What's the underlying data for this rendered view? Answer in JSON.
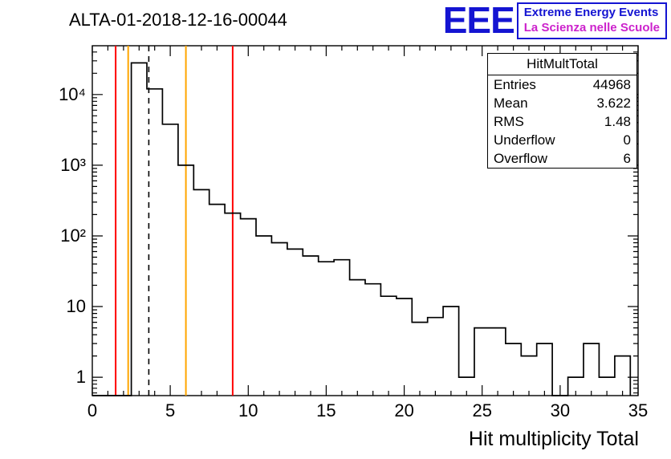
{
  "title": "ALTA-01-2018-12-16-00044",
  "logo": {
    "acronym": "EEE",
    "line1": "Extreme Energy Events",
    "line2": "La Scienza nelle Scuole",
    "color_primary": "#1414d2",
    "color_secondary": "#cc22cc"
  },
  "stats": {
    "title": "HitMultTotal",
    "rows": [
      {
        "label": "Entries",
        "value": "44968"
      },
      {
        "label": "Mean",
        "value": "3.622"
      },
      {
        "label": "RMS",
        "value": "1.48"
      },
      {
        "label": "Underflow",
        "value": "0"
      },
      {
        "label": "Overflow",
        "value": "6"
      }
    ]
  },
  "axis": {
    "x_title": "Hit multiplicity Total"
  },
  "chart_data": {
    "type": "bar",
    "subtype": "step-histogram",
    "title": "ALTA-01-2018-12-16-00044",
    "series_name": "HitMultTotal",
    "xlabel": "Hit multiplicity Total",
    "ylabel": "",
    "yscale": "log",
    "xlim": [
      0,
      35
    ],
    "ylim": [
      0.55,
      49000
    ],
    "grid": false,
    "legend": false,
    "bin_start": -0.5,
    "bin_width": 1,
    "values": [
      0,
      0,
      0,
      28000,
      12000,
      3800,
      1000,
      450,
      280,
      210,
      175,
      100,
      80,
      65,
      52,
      43,
      46,
      24,
      21,
      14,
      13,
      6,
      7,
      10,
      1,
      5,
      5,
      3,
      2,
      3,
      0,
      1,
      3,
      1,
      2
    ],
    "xticks": [
      0,
      5,
      10,
      15,
      20,
      25,
      30,
      35
    ],
    "ytick_values": [
      1,
      10,
      100,
      1000,
      10000
    ],
    "ytick_labels": [
      "1",
      "10",
      "10²",
      "10³",
      "10⁴"
    ],
    "line_color": "#000000",
    "markers": [
      {
        "x": 1.5,
        "color": "#ff0000",
        "style": "solid",
        "name": "red-line-low"
      },
      {
        "x": 2.3,
        "color": "#ffa500",
        "style": "solid",
        "name": "orange-line-low"
      },
      {
        "x": 3.622,
        "color": "#000000",
        "style": "dashed",
        "name": "mean-dashed-line"
      },
      {
        "x": 6.0,
        "color": "#ffa500",
        "style": "solid",
        "name": "orange-line-high"
      },
      {
        "x": 9.0,
        "color": "#ff0000",
        "style": "solid",
        "name": "red-line-high"
      }
    ]
  }
}
